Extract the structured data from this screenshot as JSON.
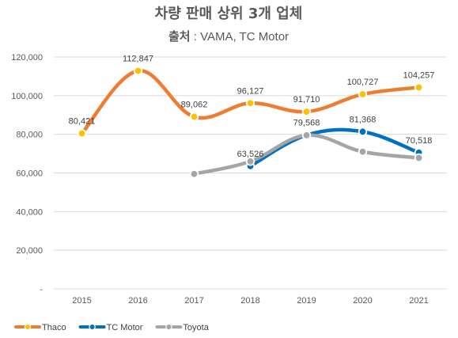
{
  "chart_data": {
    "type": "line",
    "title": "차량 판매 상위 3개 업체",
    "subtitle_label": "출처",
    "subtitle_rest": " : VAMA, TC Motor",
    "x": [
      "2015",
      "2016",
      "2017",
      "2018",
      "2019",
      "2020",
      "2021"
    ],
    "ylim": [
      0,
      120000
    ],
    "yticks": [
      {
        "value": 0,
        "label": "-"
      },
      {
        "value": 20000,
        "label": "20,000"
      },
      {
        "value": 40000,
        "label": "40,000"
      },
      {
        "value": 60000,
        "label": "60,000"
      },
      {
        "value": 80000,
        "label": "80,000"
      },
      {
        "value": 100000,
        "label": "100,000"
      },
      {
        "value": 120000,
        "label": "120,000"
      }
    ],
    "grid": true,
    "legend_position": "bottom-left",
    "series": [
      {
        "name": "Thaco",
        "color": "#ED7D31",
        "marker_color": "#FFC000",
        "values": [
          80421,
          112847,
          89062,
          96127,
          91710,
          100727,
          104257
        ],
        "labels": [
          "80,421",
          "112,847",
          "89,062",
          "96,127",
          "91,710",
          "100,727",
          "104,257"
        ]
      },
      {
        "name": "TC Motor",
        "color": "#0070C0",
        "marker_color": "#0070C0",
        "values": [
          null,
          null,
          null,
          63526,
          79568,
          81368,
          70518
        ],
        "labels": [
          null,
          null,
          null,
          "63,526",
          "79,568",
          "81,368",
          "70,518"
        ]
      },
      {
        "name": "Toyota",
        "color": "#A5A5A5",
        "marker_color": "#A5A5A5",
        "values": [
          null,
          null,
          59500,
          66000,
          79500,
          71000,
          67800
        ],
        "labels": [
          null,
          null,
          null,
          null,
          null,
          null,
          null
        ]
      }
    ]
  }
}
